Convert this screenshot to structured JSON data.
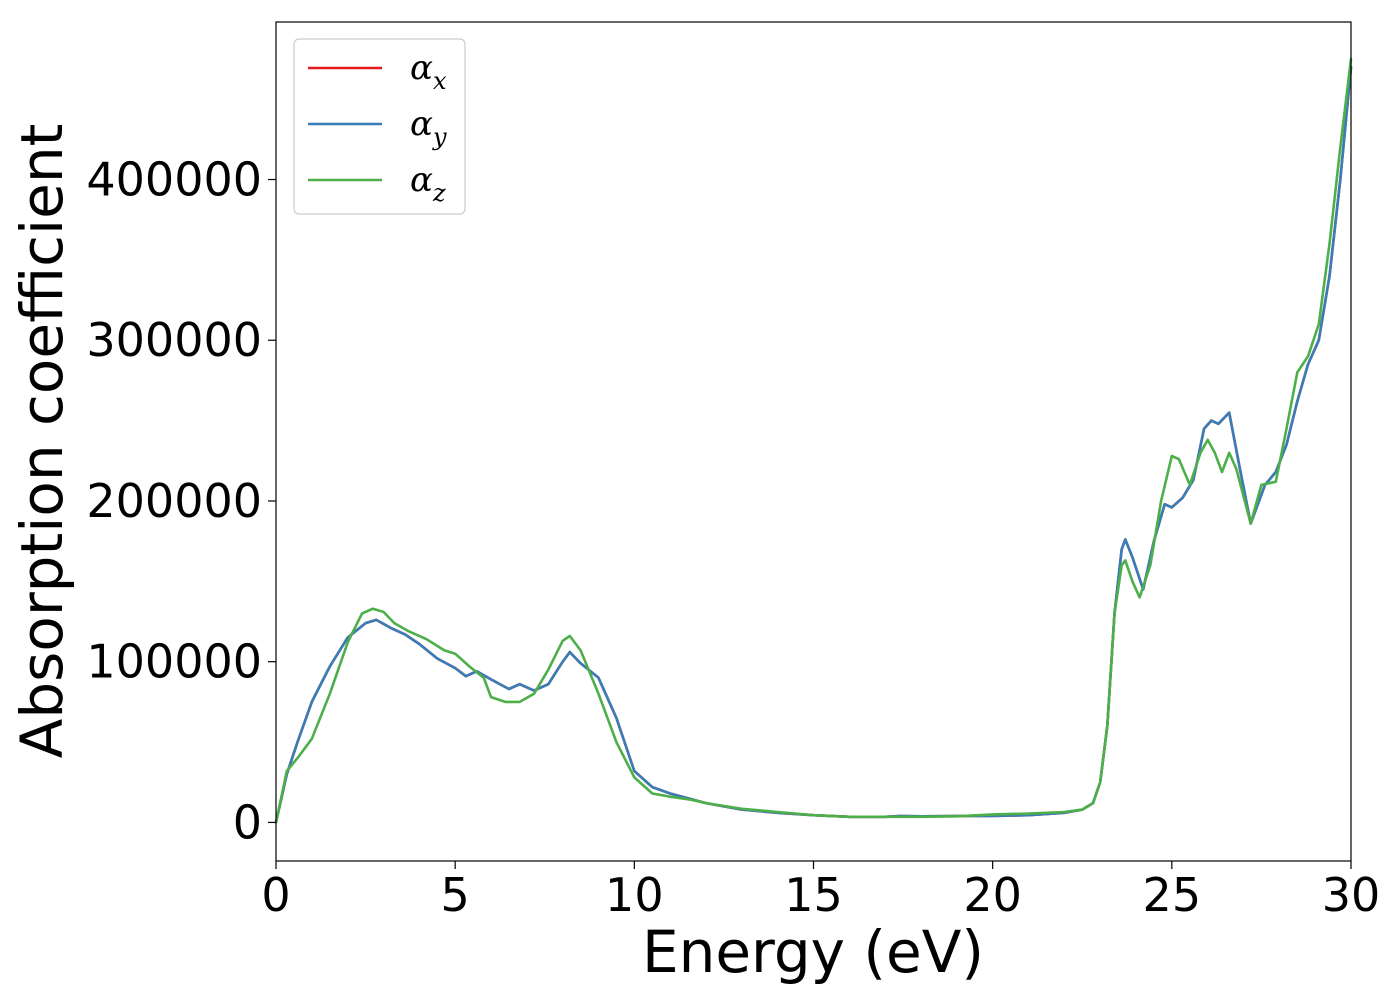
{
  "chart_data": {
    "type": "line",
    "title": "",
    "xlabel": "Energy (eV)",
    "ylabel": "Absorption coefficient",
    "xlim": [
      0,
      30
    ],
    "ylim": [
      -24000,
      498000
    ],
    "x_ticks": [
      "0",
      "5",
      "10",
      "15",
      "20",
      "25",
      "30"
    ],
    "y_ticks": [
      "0",
      "100000",
      "200000",
      "300000",
      "400000"
    ],
    "grid": false,
    "legend_position": "top-left",
    "series": [
      {
        "name": "α",
        "subscript": "x",
        "color": "#e41a1c",
        "x": [
          0,
          0.3,
          0.6,
          1.0,
          1.5,
          2.0,
          2.5,
          2.8,
          3.2,
          3.6,
          4.0,
          4.5,
          5.0,
          5.3,
          5.6,
          6.0,
          6.5,
          6.8,
          7.2,
          7.6,
          8.0,
          8.2,
          8.5,
          9.0,
          9.5,
          10.0,
          10.5,
          11.0,
          12.0,
          13.0,
          14.0,
          15.0,
          16.0,
          17.0,
          17.4,
          18.0,
          19.0,
          20.0,
          21.0,
          22.0,
          22.5,
          22.8,
          23.0,
          23.2,
          23.4,
          23.6,
          23.7,
          23.9,
          24.2,
          24.5,
          24.8,
          25.0,
          25.3,
          25.6,
          25.9,
          26.1,
          26.3,
          26.6,
          26.9,
          27.2,
          27.6,
          27.9,
          28.2,
          28.5,
          28.8,
          29.1,
          29.4,
          29.7,
          30.0
        ],
        "y": [
          0,
          30000,
          50000,
          75000,
          97000,
          115000,
          124000,
          126000,
          121000,
          117000,
          111000,
          102000,
          96000,
          91000,
          94000,
          89000,
          83000,
          86000,
          82000,
          86000,
          100000,
          106000,
          99000,
          90000,
          65000,
          32000,
          22000,
          18000,
          12000,
          8000,
          6000,
          4500,
          3500,
          3500,
          4000,
          3800,
          4000,
          4000,
          4500,
          6000,
          8000,
          12000,
          25000,
          60000,
          130000,
          170000,
          176000,
          165000,
          145000,
          175000,
          198000,
          196000,
          202000,
          213000,
          245000,
          250000,
          248000,
          255000,
          220000,
          186000,
          210000,
          218000,
          235000,
          262000,
          285000,
          300000,
          340000,
          400000,
          470000
        ]
      },
      {
        "name": "α",
        "subscript": "y",
        "color": "#377eb8",
        "x": [
          0,
          0.3,
          0.6,
          1.0,
          1.5,
          2.0,
          2.5,
          2.8,
          3.2,
          3.6,
          4.0,
          4.5,
          5.0,
          5.3,
          5.6,
          6.0,
          6.5,
          6.8,
          7.2,
          7.6,
          8.0,
          8.2,
          8.5,
          9.0,
          9.5,
          10.0,
          10.5,
          11.0,
          12.0,
          13.0,
          14.0,
          15.0,
          16.0,
          17.0,
          17.4,
          18.0,
          19.0,
          20.0,
          21.0,
          22.0,
          22.5,
          22.8,
          23.0,
          23.2,
          23.4,
          23.6,
          23.7,
          23.9,
          24.2,
          24.5,
          24.8,
          25.0,
          25.3,
          25.6,
          25.9,
          26.1,
          26.3,
          26.6,
          26.9,
          27.2,
          27.6,
          27.9,
          28.2,
          28.5,
          28.8,
          29.1,
          29.4,
          29.7,
          30.0
        ],
        "y": [
          0,
          30000,
          50000,
          75000,
          97000,
          115000,
          124000,
          126000,
          121000,
          117000,
          111000,
          102000,
          96000,
          91000,
          94000,
          89000,
          83000,
          86000,
          82000,
          86000,
          100000,
          106000,
          99000,
          90000,
          65000,
          32000,
          22000,
          18000,
          12000,
          8000,
          6000,
          4500,
          3500,
          3500,
          4000,
          3800,
          4000,
          4000,
          4500,
          6000,
          8000,
          12000,
          25000,
          60000,
          130000,
          170000,
          176000,
          165000,
          145000,
          175000,
          198000,
          196000,
          202000,
          213000,
          245000,
          250000,
          248000,
          255000,
          220000,
          186000,
          210000,
          218000,
          235000,
          262000,
          285000,
          300000,
          340000,
          400000,
          470000
        ]
      },
      {
        "name": "α",
        "subscript": "z",
        "color": "#4daf4a",
        "x": [
          0,
          0.3,
          0.6,
          1.0,
          1.5,
          2.0,
          2.4,
          2.7,
          3.0,
          3.3,
          3.7,
          4.2,
          4.7,
          5.0,
          5.4,
          5.8,
          6.0,
          6.4,
          6.8,
          7.2,
          7.6,
          8.0,
          8.2,
          8.5,
          9.0,
          9.5,
          10.0,
          10.5,
          11.0,
          11.6,
          12.0,
          13.0,
          14.0,
          15.0,
          16.0,
          17.0,
          18.0,
          19.0,
          20.0,
          21.0,
          22.0,
          22.5,
          22.8,
          23.0,
          23.2,
          23.4,
          23.6,
          23.7,
          23.9,
          24.1,
          24.4,
          24.7,
          25.0,
          25.2,
          25.5,
          25.8,
          26.0,
          26.2,
          26.4,
          26.6,
          26.8,
          27.2,
          27.5,
          27.9,
          28.2,
          28.5,
          28.8,
          29.1,
          29.4,
          29.7,
          30.0
        ],
        "y": [
          0,
          32000,
          40000,
          52000,
          80000,
          112000,
          130000,
          133000,
          131000,
          124000,
          119000,
          114000,
          107000,
          105000,
          97000,
          90000,
          78000,
          75000,
          75000,
          80000,
          95000,
          113000,
          116000,
          107000,
          80000,
          50000,
          28000,
          18000,
          16000,
          14000,
          12000,
          8500,
          6500,
          4500,
          3500,
          3500,
          3500,
          3800,
          5000,
          5500,
          6500,
          8000,
          12000,
          25000,
          60000,
          130000,
          160000,
          163000,
          150000,
          140000,
          160000,
          200000,
          228000,
          226000,
          210000,
          230000,
          238000,
          230000,
          218000,
          230000,
          220000,
          186000,
          210000,
          212000,
          245000,
          280000,
          290000,
          310000,
          360000,
          420000,
          475000
        ]
      }
    ]
  }
}
